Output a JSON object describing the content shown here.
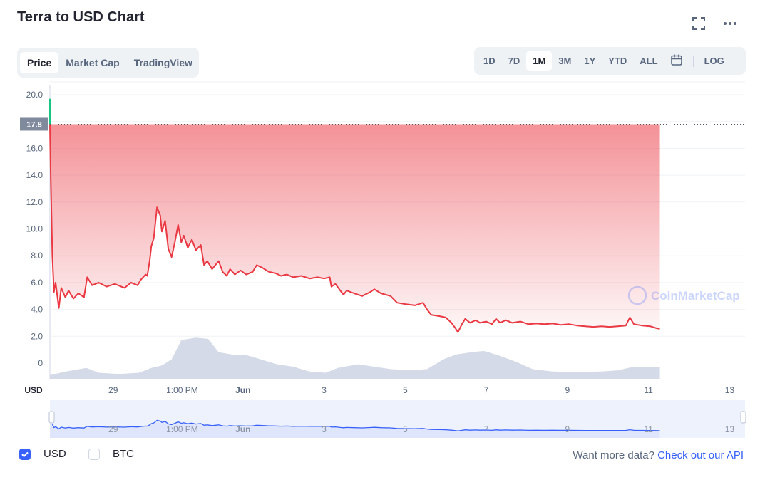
{
  "header": {
    "title": "Terra to USD Chart",
    "fullscreen_icon": "fullscreen-icon",
    "more_icon": "more-horizontal-icon"
  },
  "tabs_left": [
    "Price",
    "Market Cap",
    "TradingView"
  ],
  "active_left": "Price",
  "tabs_right": [
    "1D",
    "7D",
    "1M",
    "3M",
    "1Y",
    "YTD",
    "ALL"
  ],
  "active_right": "1M",
  "calendar_icon": "calendar-icon",
  "log_label": "LOG",
  "colors": {
    "price_line": "#ea3943",
    "accent": "#3861fb",
    "nav_line": "#3861fb",
    "volume": "#cfd6e4",
    "current_price_marker": "#808a9d",
    "start_green": "#16c784"
  },
  "chart_data": {
    "type": "line",
    "y_axis_unit": "USD",
    "ylim": [
      -1,
      20.5
    ],
    "y_ticks": [
      "20.0",
      "18.0",
      "16.0",
      "14.0",
      "12.0",
      "10.0",
      "8.0",
      "6.0",
      "4.0",
      "2.0",
      "0"
    ],
    "y_tick_values": [
      20,
      18,
      16,
      14,
      12,
      10,
      8,
      6,
      4,
      2,
      0
    ],
    "current_price_label": "17.8",
    "current_price": 17.8,
    "x_ticks": [
      "29",
      "1:00 PM",
      "Jun",
      "3",
      "5",
      "7",
      "9",
      "11",
      "13"
    ],
    "x_tick_days": [
      0.78,
      1.63,
      2.38,
      3.38,
      4.38,
      5.38,
      6.38,
      7.38,
      8.38
    ],
    "x_range_days": [
      0,
      8.57
    ],
    "price": [
      [
        0.0,
        17.8
      ],
      [
        0.01,
        14.0
      ],
      [
        0.03,
        8.0
      ],
      [
        0.05,
        5.3
      ],
      [
        0.07,
        6.0
      ],
      [
        0.11,
        4.1
      ],
      [
        0.14,
        5.6
      ],
      [
        0.19,
        4.9
      ],
      [
        0.23,
        5.4
      ],
      [
        0.29,
        4.8
      ],
      [
        0.35,
        5.2
      ],
      [
        0.42,
        4.9
      ],
      [
        0.46,
        6.4
      ],
      [
        0.52,
        5.8
      ],
      [
        0.6,
        6.0
      ],
      [
        0.7,
        5.7
      ],
      [
        0.8,
        5.9
      ],
      [
        0.92,
        5.6
      ],
      [
        1.0,
        6.0
      ],
      [
        1.08,
        5.8
      ],
      [
        1.12,
        6.2
      ],
      [
        1.18,
        6.6
      ],
      [
        1.2,
        6.5
      ],
      [
        1.23,
        7.6
      ],
      [
        1.25,
        8.7
      ],
      [
        1.28,
        9.3
      ],
      [
        1.32,
        11.6
      ],
      [
        1.36,
        11.0
      ],
      [
        1.38,
        9.8
      ],
      [
        1.42,
        10.6
      ],
      [
        1.46,
        8.5
      ],
      [
        1.5,
        7.9
      ],
      [
        1.54,
        9.0
      ],
      [
        1.58,
        10.3
      ],
      [
        1.62,
        9.0
      ],
      [
        1.65,
        9.5
      ],
      [
        1.7,
        8.6
      ],
      [
        1.75,
        9.2
      ],
      [
        1.8,
        8.4
      ],
      [
        1.86,
        8.8
      ],
      [
        1.9,
        7.3
      ],
      [
        1.94,
        7.6
      ],
      [
        2.0,
        7.0
      ],
      [
        2.08,
        7.6
      ],
      [
        2.13,
        6.8
      ],
      [
        2.18,
        6.5
      ],
      [
        2.22,
        7.0
      ],
      [
        2.28,
        6.6
      ],
      [
        2.35,
        6.9
      ],
      [
        2.42,
        6.6
      ],
      [
        2.5,
        6.8
      ],
      [
        2.55,
        7.3
      ],
      [
        2.62,
        7.1
      ],
      [
        2.7,
        6.8
      ],
      [
        2.78,
        6.7
      ],
      [
        2.85,
        6.5
      ],
      [
        2.92,
        6.6
      ],
      [
        3.0,
        6.4
      ],
      [
        3.1,
        6.5
      ],
      [
        3.2,
        6.3
      ],
      [
        3.3,
        6.4
      ],
      [
        3.38,
        6.3
      ],
      [
        3.45,
        6.4
      ],
      [
        3.47,
        5.7
      ],
      [
        3.52,
        5.9
      ],
      [
        3.58,
        5.4
      ],
      [
        3.62,
        5.1
      ],
      [
        3.66,
        5.4
      ],
      [
        3.75,
        5.2
      ],
      [
        3.85,
        5.0
      ],
      [
        3.95,
        5.3
      ],
      [
        4.0,
        5.5
      ],
      [
        4.08,
        5.2
      ],
      [
        4.2,
        5.0
      ],
      [
        4.28,
        4.5
      ],
      [
        4.38,
        4.4
      ],
      [
        4.5,
        4.3
      ],
      [
        4.6,
        4.5
      ],
      [
        4.65,
        4.0
      ],
      [
        4.7,
        3.6
      ],
      [
        4.8,
        3.5
      ],
      [
        4.88,
        3.4
      ],
      [
        4.95,
        3.0
      ],
      [
        5.0,
        2.6
      ],
      [
        5.03,
        2.3
      ],
      [
        5.08,
        2.9
      ],
      [
        5.12,
        3.3
      ],
      [
        5.18,
        3.0
      ],
      [
        5.25,
        3.2
      ],
      [
        5.3,
        3.0
      ],
      [
        5.38,
        3.1
      ],
      [
        5.45,
        2.9
      ],
      [
        5.5,
        3.3
      ],
      [
        5.55,
        3.0
      ],
      [
        5.62,
        3.2
      ],
      [
        5.7,
        3.0
      ],
      [
        5.8,
        3.1
      ],
      [
        5.9,
        2.9
      ],
      [
        6.0,
        2.95
      ],
      [
        6.1,
        2.9
      ],
      [
        6.2,
        2.95
      ],
      [
        6.3,
        2.85
      ],
      [
        6.4,
        2.9
      ],
      [
        6.5,
        2.8
      ],
      [
        6.6,
        2.75
      ],
      [
        6.7,
        2.7
      ],
      [
        6.8,
        2.75
      ],
      [
        6.9,
        2.7
      ],
      [
        7.0,
        2.75
      ],
      [
        7.1,
        2.8
      ],
      [
        7.15,
        3.4
      ],
      [
        7.2,
        2.9
      ],
      [
        7.3,
        2.8
      ],
      [
        7.4,
        2.75
      ],
      [
        7.48,
        2.6
      ],
      [
        7.52,
        2.55
      ]
    ],
    "volume": [
      [
        0.0,
        0.3
      ],
      [
        0.2,
        0.6
      ],
      [
        0.45,
        0.9
      ],
      [
        0.6,
        0.5
      ],
      [
        0.85,
        0.4
      ],
      [
        1.1,
        0.5
      ],
      [
        1.25,
        0.9
      ],
      [
        1.38,
        1.1
      ],
      [
        1.5,
        1.6
      ],
      [
        1.62,
        3.2
      ],
      [
        1.8,
        3.4
      ],
      [
        1.95,
        3.3
      ],
      [
        2.08,
        2.2
      ],
      [
        2.25,
        2.0
      ],
      [
        2.4,
        2.0
      ],
      [
        2.6,
        1.6
      ],
      [
        2.8,
        1.2
      ],
      [
        3.0,
        1.0
      ],
      [
        3.2,
        0.6
      ],
      [
        3.4,
        0.5
      ],
      [
        3.55,
        0.9
      ],
      [
        3.8,
        1.2
      ],
      [
        4.0,
        1.0
      ],
      [
        4.2,
        0.8
      ],
      [
        4.45,
        0.7
      ],
      [
        4.65,
        0.8
      ],
      [
        4.85,
        1.6
      ],
      [
        5.0,
        2.0
      ],
      [
        5.2,
        2.2
      ],
      [
        5.35,
        2.3
      ],
      [
        5.55,
        1.9
      ],
      [
        5.75,
        1.4
      ],
      [
        5.95,
        0.8
      ],
      [
        6.2,
        0.6
      ],
      [
        6.5,
        0.55
      ],
      [
        6.8,
        0.6
      ],
      [
        7.0,
        0.7
      ],
      [
        7.2,
        1.0
      ],
      [
        7.52,
        1.0
      ]
    ],
    "grid": true
  },
  "watermark": "CoinMarketCap",
  "footer": {
    "usd_label": "USD",
    "btc_label": "BTC",
    "more_text": "Want more data?",
    "more_link": "Check out our API"
  }
}
